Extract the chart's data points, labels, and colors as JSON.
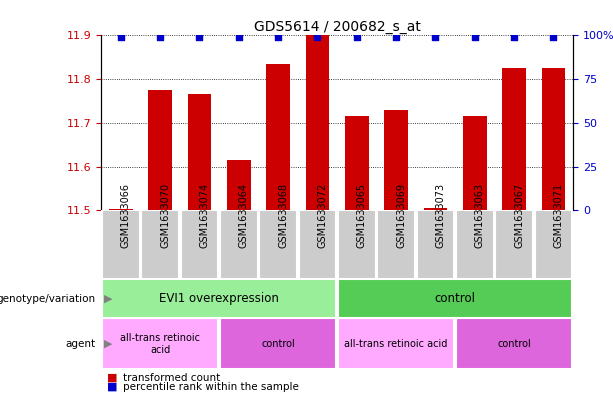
{
  "title": "GDS5614 / 200682_s_at",
  "samples": [
    "GSM1633066",
    "GSM1633070",
    "GSM1633074",
    "GSM1633064",
    "GSM1633068",
    "GSM1633072",
    "GSM1633065",
    "GSM1633069",
    "GSM1633073",
    "GSM1633063",
    "GSM1633067",
    "GSM1633071"
  ],
  "bar_values": [
    11.502,
    11.775,
    11.765,
    11.615,
    11.835,
    11.905,
    11.715,
    11.73,
    11.505,
    11.715,
    11.825,
    11.825
  ],
  "percentile_values": [
    99,
    99,
    99,
    99,
    99,
    99,
    99,
    99,
    99,
    99,
    99,
    99
  ],
  "bar_color": "#cc0000",
  "percentile_color": "#0000cc",
  "ylim_left": [
    11.5,
    11.9
  ],
  "ylim_right": [
    0,
    100
  ],
  "yticks_left": [
    11.5,
    11.6,
    11.7,
    11.8,
    11.9
  ],
  "yticks_right": [
    0,
    25,
    50,
    75,
    100
  ],
  "ytick_labels_right": [
    "0",
    "25",
    "50",
    "75",
    "100%"
  ],
  "bar_width": 0.6,
  "sample_box_color": "#cccccc",
  "genotype_groups": [
    {
      "label": "EVI1 overexpression",
      "start": 0,
      "end": 5,
      "color": "#99ee99"
    },
    {
      "label": "control",
      "start": 6,
      "end": 11,
      "color": "#55cc55"
    }
  ],
  "agent_groups": [
    {
      "label": "all-trans retinoic\nacid",
      "start": 0,
      "end": 2,
      "color": "#ffaaff"
    },
    {
      "label": "control",
      "start": 3,
      "end": 5,
      "color": "#dd66dd"
    },
    {
      "label": "all-trans retinoic acid",
      "start": 6,
      "end": 8,
      "color": "#ffaaff"
    },
    {
      "label": "control",
      "start": 9,
      "end": 11,
      "color": "#dd66dd"
    }
  ],
  "tick_color_left": "#cc0000",
  "tick_color_right": "#0000cc",
  "title_fontsize": 10,
  "tick_fontsize": 8,
  "sample_label_fontsize": 7
}
